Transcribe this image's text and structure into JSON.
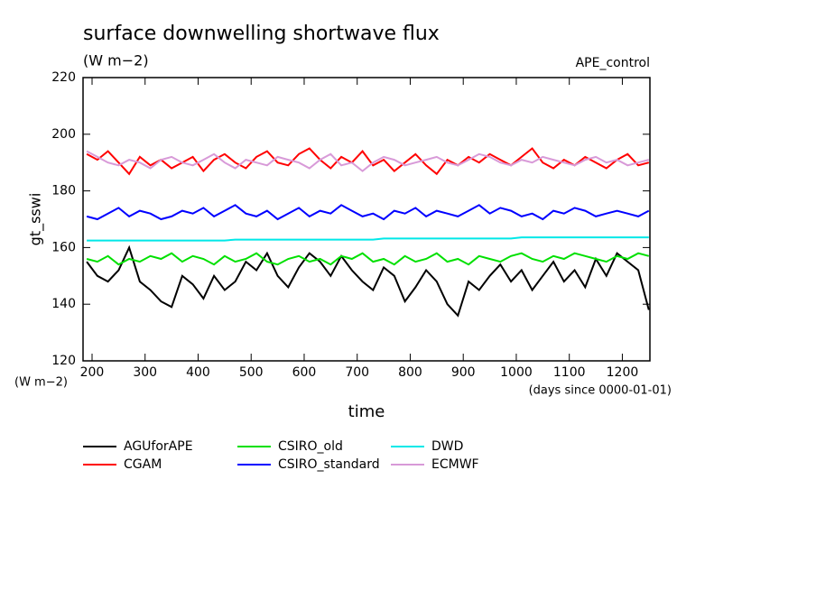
{
  "chart_data": {
    "type": "line",
    "title": "surface downwelling shortwave flux",
    "subtitle": "(W m−2)",
    "annotation": "APE_control",
    "y_label": "gt_sswi",
    "y_unit": "(W m−2)",
    "x_label": "time",
    "x_unit": "(days since 0000-01-01)",
    "xlim": [
      183,
      1252
    ],
    "ylim": [
      120,
      220
    ],
    "xticks": [
      200,
      300,
      400,
      500,
      600,
      700,
      800,
      900,
      1000,
      1100,
      1200
    ],
    "yticks": [
      120,
      140,
      160,
      180,
      200,
      220
    ],
    "x": [
      190,
      210,
      230,
      250,
      270,
      290,
      310,
      330,
      350,
      370,
      390,
      410,
      430,
      450,
      470,
      490,
      510,
      530,
      550,
      570,
      590,
      610,
      630,
      650,
      670,
      690,
      710,
      730,
      750,
      770,
      790,
      810,
      830,
      850,
      870,
      890,
      910,
      930,
      950,
      970,
      990,
      1010,
      1030,
      1050,
      1070,
      1090,
      1110,
      1130,
      1150,
      1170,
      1190,
      1210,
      1230,
      1250
    ],
    "series": [
      {
        "name": "AGUforAPE",
        "color": "#000000",
        "values": [
          155,
          150,
          148,
          152,
          160,
          148,
          145,
          141,
          139,
          150,
          147,
          142,
          150,
          145,
          148,
          155,
          152,
          158,
          150,
          146,
          153,
          158,
          155,
          150,
          157,
          152,
          148,
          145,
          153,
          150,
          141,
          146,
          152,
          148,
          140,
          136,
          148,
          145,
          150,
          154,
          148,
          152,
          145,
          150,
          155,
          148,
          152,
          146,
          156,
          150,
          158,
          155,
          152,
          138
        ]
      },
      {
        "name": "CGAM",
        "color": "#ff0000",
        "values": [
          193,
          191,
          194,
          190,
          186,
          192,
          189,
          191,
          188,
          190,
          192,
          187,
          191,
          193,
          190,
          188,
          192,
          194,
          190,
          189,
          193,
          195,
          191,
          188,
          192,
          190,
          194,
          189,
          191,
          187,
          190,
          193,
          189,
          186,
          191,
          189,
          192,
          190,
          193,
          191,
          189,
          192,
          195,
          190,
          188,
          191,
          189,
          192,
          190,
          188,
          191,
          193,
          189,
          190
        ]
      },
      {
        "name": "CSIRO_old",
        "color": "#00e000",
        "values": [
          156,
          155,
          157,
          154,
          156,
          155,
          157,
          156,
          158,
          155,
          157,
          156,
          154,
          157,
          155,
          156,
          158,
          155,
          154,
          156,
          157,
          155,
          156,
          154,
          157,
          156,
          158,
          155,
          156,
          154,
          157,
          155,
          156,
          158,
          155,
          156,
          154,
          157,
          156,
          155,
          157,
          158,
          156,
          155,
          157,
          156,
          158,
          157,
          156,
          155,
          157,
          156,
          158,
          157
        ]
      },
      {
        "name": "CSIRO_standard",
        "color": "#0000ff",
        "values": [
          171,
          170,
          172,
          174,
          171,
          173,
          172,
          170,
          171,
          173,
          172,
          174,
          171,
          173,
          175,
          172,
          171,
          173,
          170,
          172,
          174,
          171,
          173,
          172,
          175,
          173,
          171,
          172,
          170,
          173,
          172,
          174,
          171,
          173,
          172,
          171,
          173,
          175,
          172,
          174,
          173,
          171,
          172,
          170,
          173,
          172,
          174,
          173,
          171,
          172,
          173,
          172,
          171,
          173
        ]
      },
      {
        "name": "DWD",
        "color": "#00e8e8",
        "values": [
          162.5,
          162.5,
          162.5,
          162.5,
          162.5,
          162.5,
          162.5,
          162.5,
          162.5,
          162.5,
          162.5,
          162.5,
          162.5,
          162.5,
          162.8,
          162.8,
          162.8,
          162.8,
          162.8,
          162.8,
          162.8,
          162.8,
          162.8,
          162.8,
          162.8,
          162.8,
          162.8,
          162.8,
          163.2,
          163.2,
          163.2,
          163.2,
          163.2,
          163.2,
          163.2,
          163.2,
          163.2,
          163.2,
          163.2,
          163.2,
          163.2,
          163.6,
          163.6,
          163.6,
          163.6,
          163.6,
          163.6,
          163.6,
          163.6,
          163.6,
          163.6,
          163.6,
          163.6,
          163.6
        ]
      },
      {
        "name": "ECMWF",
        "color": "#d89ad8",
        "values": [
          194,
          192,
          190,
          189,
          191,
          190,
          188,
          191,
          192,
          190,
          189,
          191,
          193,
          190,
          188,
          191,
          190,
          189,
          192,
          191,
          190,
          188,
          191,
          193,
          189,
          190,
          187,
          190,
          192,
          191,
          189,
          190,
          191,
          192,
          190,
          189,
          191,
          193,
          192,
          190,
          189,
          191,
          190,
          192,
          191,
          190,
          189,
          191,
          192,
          190,
          191,
          189,
          190,
          191
        ]
      }
    ]
  }
}
